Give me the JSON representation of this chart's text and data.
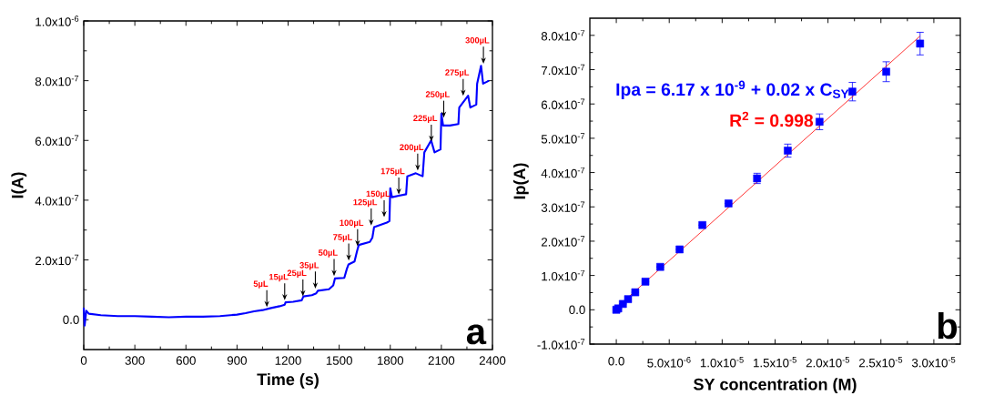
{
  "chart_data": [
    {
      "type": "line",
      "xlabel": "Time (s)",
      "ylabel": "I(A)",
      "color": "#0000ff",
      "x": [
        0,
        5,
        15,
        30,
        100,
        200,
        300,
        400,
        500,
        600,
        700,
        800,
        900,
        950,
        1000,
        1050,
        1100,
        1150,
        1180,
        1185,
        1230,
        1280,
        1290,
        1340,
        1365,
        1375,
        1440,
        1465,
        1475,
        1530,
        1545,
        1555,
        1590,
        1605,
        1615,
        1680,
        1695,
        1705,
        1780,
        1795,
        1800,
        1810,
        1850,
        1893,
        1900,
        1950,
        1990,
        2000,
        2040,
        2060,
        2095,
        2100,
        2110,
        2150,
        2200,
        2205,
        2257,
        2270,
        2305,
        2310,
        2333,
        2345,
        2380
      ],
      "values": [
        4e-08,
        -2e-08,
        3e-08,
        2e-08,
        1.5e-08,
        1.2e-08,
        1.2e-08,
        1e-08,
        8e-09,
        1e-08,
        1e-08,
        1.2e-08,
        1.7e-08,
        2.2e-08,
        2.8e-08,
        3.2e-08,
        3.9e-08,
        4.5e-08,
        5e-08,
        5.8e-08,
        6e-08,
        6.5e-08,
        7.8e-08,
        8.2e-08,
        8.8e-08,
        9.7e-08,
        1.02e-07,
        1.15e-07,
        1.38e-07,
        1.4e-07,
        1.7e-07,
        1.85e-07,
        1.95e-07,
        2.3e-07,
        2.5e-07,
        2.6e-07,
        2.75e-07,
        3.1e-07,
        3.25e-07,
        3.3e-07,
        4.4e-07,
        4.1e-07,
        4.15e-07,
        4.2e-07,
        4.8e-07,
        4.9e-07,
        4.8e-07,
        5.6e-07,
        6e-07,
        5.6e-07,
        5.7e-07,
        6.9e-07,
        6.5e-07,
        6.5e-07,
        6.55e-07,
        7.1e-07,
        7.5e-07,
        7.1e-07,
        7.2e-07,
        7.9e-07,
        8.5e-07,
        7.9e-07,
        8e-07
      ],
      "xlim": [
        0,
        2400
      ],
      "xticks": [
        0,
        300,
        600,
        900,
        1200,
        1500,
        1800,
        2100,
        2400
      ],
      "ylim": [
        -1e-07,
        1e-06
      ],
      "yticks": [
        {
          "value": 0,
          "label": "0.0"
        },
        {
          "value": 2e-07,
          "label": "2.0x10$^{-7}$"
        },
        {
          "value": 4e-07,
          "label": "4.0x10$^{-7}$"
        },
        {
          "value": 6e-07,
          "label": "6.0x10$^{-7}$"
        },
        {
          "value": 8e-07,
          "label": "8.0x10$^{-7}$"
        },
        {
          "value": 1e-06,
          "label": "1.0x10$^{-6}$"
        }
      ],
      "annotations": [
        {
          "text": "5µL",
          "x": 1075,
          "y": 3.8e-08
        },
        {
          "text": "15µL",
          "x": 1180,
          "y": 6.1e-08
        },
        {
          "text": "25µL",
          "x": 1287,
          "y": 7.4e-08
        },
        {
          "text": "35µL",
          "x": 1360,
          "y": 1e-07
        },
        {
          "text": "50µL",
          "x": 1470,
          "y": 1.42e-07
        },
        {
          "text": "75µL",
          "x": 1556,
          "y": 1.94e-07
        },
        {
          "text": "100µL",
          "x": 1608,
          "y": 2.42e-07
        },
        {
          "text": "125µL",
          "x": 1688,
          "y": 3.11e-07
        },
        {
          "text": "150µL",
          "x": 1764,
          "y": 3.39e-07
        },
        {
          "text": "175µL",
          "x": 1850,
          "y": 4.15e-07
        },
        {
          "text": "200µL",
          "x": 1961,
          "y": 4.95e-07
        },
        {
          "text": "225µL",
          "x": 2041,
          "y": 5.92e-07
        },
        {
          "text": "250µL",
          "x": 2114,
          "y": 6.72e-07
        },
        {
          "text": "275µL",
          "x": 2228,
          "y": 7.45e-07
        },
        {
          "text": "300µL",
          "x": 2347,
          "y": 8.53e-07
        },
        "a"
      ]
    },
    {
      "type": "scatter",
      "xlabel": "SY concentration (M)",
      "ylabel": "Ip(A)",
      "series": [
        {
          "type": "scatter",
          "marker": "square",
          "color": "#0000ff",
          "x": [
            0,
            1.8e-07,
            6.2e-07,
            1.11e-06,
            1.79e-06,
            2.75e-06,
            4.15e-06,
            5.98e-06,
            8.13e-06,
            1.06e-05,
            1.33e-05,
            1.62e-05,
            1.92e-05,
            2.23e-05,
            2.55e-05,
            2.87e-05
          ],
          "values": [
            0,
            4e-09,
            1.7e-08,
            3.1e-08,
            5.1e-08,
            8.2e-08,
            1.25e-07,
            1.76e-07,
            2.47e-07,
            3.1e-07,
            3.83e-07,
            4.64e-07,
            5.48e-07,
            6.36e-07,
            6.94e-07,
            7.76e-07
          ],
          "errors": [
            null,
            null,
            null,
            null,
            null,
            null,
            null,
            null,
            null,
            null,
            1.5e-08,
            1.9e-08,
            2.3e-08,
            2.7e-08,
            2.9e-08,
            3.3e-08
          ]
        },
        {
          "type": "line",
          "color": "#ff0000",
          "x": [
            1.3e-07,
            2.87e-05
          ],
          "values": [
            9e-09,
            7.98e-07
          ]
        }
      ],
      "xlim": [
        -2.5e-06,
        3.25e-05
      ],
      "xticks": [
        {
          "value": 0,
          "label": "0.0"
        },
        {
          "value": 5e-06,
          "label": "5.0x10$^{-6}$"
        },
        {
          "value": 1e-05,
          "label": "1.0x10$^{-5}$"
        },
        {
          "value": 1.5e-05,
          "label": "1.5x10$^{-5}$"
        },
        {
          "value": 2e-05,
          "label": "2.0x10$^{-5}$"
        },
        {
          "value": 2.5e-05,
          "label": "2.5x10$^{-5}$"
        },
        {
          "value": 3e-05,
          "label": "3.0x10$^{-5}$"
        }
      ],
      "ylim": [
        -1e-07,
        8.5e-07
      ],
      "yticks": [
        {
          "value": -1e-07,
          "label": "-1.0x10$^{-7}$"
        },
        {
          "value": 0,
          "label": "0.0"
        },
        {
          "value": 1e-07,
          "label": "1.0x10$^{-7}$"
        },
        {
          "value": 2e-07,
          "label": "2.0x10$^{-7}$"
        },
        {
          "value": 3e-07,
          "label": "3.0x10$^{-7}$"
        },
        {
          "value": 4e-07,
          "label": "4.0x10$^{-7}$"
        },
        {
          "value": 5e-07,
          "label": "5.0x10$^{-7}$"
        },
        {
          "value": 6e-07,
          "label": "6.0x10$^{-7}$"
        },
        {
          "value": 7e-07,
          "label": "7.0x10$^{-7}$"
        },
        {
          "value": 8e-07,
          "label": "8.0x10$^{-7}$"
        }
      ],
      "annotations": [
        "Ipa = 6.17 x 10$^{-9}$ + 0.02 x C$_{SY}$",
        "R$^{2}$ = 0.998",
        "b"
      ]
    }
  ]
}
